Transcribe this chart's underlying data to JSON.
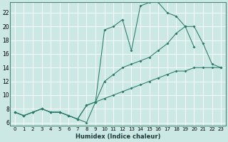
{
  "xlabel": "Humidex (Indice chaleur)",
  "background_color": "#cce8e4",
  "grid_color": "#aacccc",
  "line_color": "#2a7a6a",
  "xlim": [
    -0.5,
    23.5
  ],
  "ylim": [
    5.5,
    23.5
  ],
  "x_ticks": [
    0,
    1,
    2,
    3,
    4,
    5,
    6,
    7,
    8,
    9,
    10,
    11,
    12,
    13,
    14,
    15,
    16,
    17,
    18,
    19,
    20,
    21,
    22,
    23
  ],
  "y_ticks": [
    6,
    8,
    10,
    12,
    14,
    16,
    18,
    20,
    22
  ],
  "line_bottom_x": [
    0,
    1,
    2,
    3,
    4,
    5,
    6,
    7,
    8,
    9,
    10,
    11,
    12,
    13,
    14,
    15,
    16,
    17,
    18,
    19,
    20,
    21,
    22,
    23
  ],
  "line_bottom_y": [
    7.5,
    7.0,
    7.5,
    8.0,
    7.5,
    7.5,
    7.0,
    6.5,
    6.0,
    9.0,
    9.5,
    10.0,
    10.5,
    11.0,
    11.5,
    12.0,
    12.5,
    13.0,
    13.5,
    13.5,
    14.0,
    14.0,
    14.0,
    14.0
  ],
  "line_mid_x": [
    0,
    1,
    2,
    3,
    4,
    5,
    6,
    7,
    8,
    9,
    10,
    11,
    12,
    13,
    14,
    15,
    16,
    17,
    18,
    19,
    20,
    21,
    22,
    23
  ],
  "line_mid_y": [
    7.5,
    7.0,
    7.5,
    8.0,
    7.5,
    7.5,
    7.0,
    6.5,
    8.5,
    9.0,
    12.0,
    13.0,
    14.0,
    14.5,
    15.0,
    15.5,
    16.5,
    17.5,
    19.0,
    20.0,
    20.0,
    17.5,
    14.5,
    14.0
  ],
  "line_top_x": [
    0,
    1,
    2,
    3,
    4,
    5,
    6,
    7,
    8,
    9,
    10,
    11,
    12,
    13,
    14,
    15,
    16,
    17,
    18,
    19,
    20,
    21,
    22,
    23
  ],
  "line_top_y": [
    7.5,
    7.0,
    7.5,
    8.0,
    7.5,
    7.5,
    7.0,
    6.5,
    8.5,
    9.0,
    19.5,
    20.0,
    21.0,
    16.5,
    23.0,
    23.5,
    23.5,
    22.0,
    21.5,
    20.0,
    17.0,
    null,
    null,
    null
  ]
}
